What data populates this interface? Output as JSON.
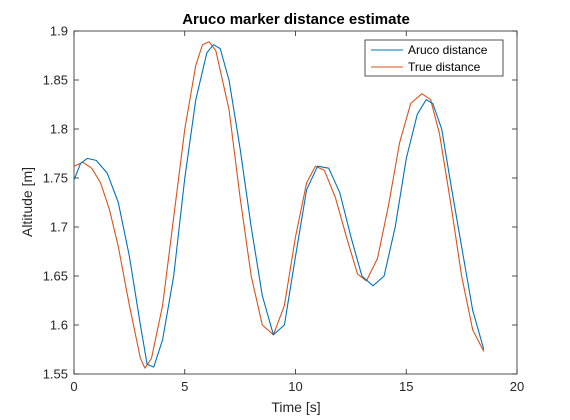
{
  "chart_data": {
    "type": "line",
    "title": "Aruco marker distance estimate",
    "xlabel": "Time [s]",
    "ylabel": "Altitude [m]",
    "xlim": [
      0,
      20
    ],
    "ylim": [
      1.55,
      1.9
    ],
    "xticks": [
      "0",
      "5",
      "10",
      "15",
      "20"
    ],
    "yticks": [
      "1.55",
      "1.6",
      "1.65",
      "1.7",
      "1.75",
      "1.8",
      "1.85",
      "1.9"
    ],
    "grid": false,
    "legend_position": "top-right",
    "series": [
      {
        "name": "Aruco distance",
        "color": "#0072bd",
        "x": [
          0,
          0.3,
          0.6,
          1.0,
          1.5,
          2.0,
          2.5,
          3.0,
          3.3,
          3.6,
          4.0,
          4.5,
          5.0,
          5.5,
          6.0,
          6.3,
          6.6,
          7.0,
          7.5,
          8.0,
          8.5,
          9.0,
          9.5,
          10.0,
          10.5,
          11.0,
          11.5,
          12.0,
          12.5,
          13.0,
          13.5,
          14.0,
          14.5,
          15.0,
          15.5,
          15.9,
          16.2,
          16.6,
          17.0,
          17.5,
          18.0,
          18.5
        ],
        "values": [
          1.748,
          1.765,
          1.77,
          1.768,
          1.755,
          1.725,
          1.67,
          1.6,
          1.56,
          1.557,
          1.585,
          1.65,
          1.75,
          1.83,
          1.878,
          1.886,
          1.882,
          1.85,
          1.78,
          1.7,
          1.63,
          1.59,
          1.6,
          1.67,
          1.738,
          1.762,
          1.76,
          1.735,
          1.69,
          1.65,
          1.64,
          1.65,
          1.7,
          1.77,
          1.815,
          1.83,
          1.826,
          1.8,
          1.745,
          1.68,
          1.615,
          1.575
        ]
      },
      {
        "name": "True distance",
        "color": "#d95319",
        "x": [
          0,
          0.4,
          0.8,
          1.2,
          1.6,
          2.0,
          2.5,
          3.0,
          3.2,
          3.5,
          4.0,
          4.5,
          5.0,
          5.5,
          5.8,
          6.1,
          6.4,
          7.0,
          7.5,
          8.0,
          8.5,
          9.0,
          9.5,
          10.0,
          10.5,
          10.9,
          11.3,
          11.8,
          12.3,
          12.8,
          13.2,
          13.7,
          14.2,
          14.7,
          15.2,
          15.7,
          16.1,
          16.5,
          17.0,
          17.5,
          18.0,
          18.5
        ],
        "values": [
          1.762,
          1.766,
          1.76,
          1.745,
          1.718,
          1.68,
          1.62,
          1.566,
          1.556,
          1.566,
          1.62,
          1.71,
          1.8,
          1.865,
          1.886,
          1.889,
          1.88,
          1.82,
          1.73,
          1.65,
          1.6,
          1.59,
          1.62,
          1.69,
          1.745,
          1.762,
          1.758,
          1.73,
          1.69,
          1.652,
          1.645,
          1.668,
          1.722,
          1.786,
          1.826,
          1.836,
          1.83,
          1.795,
          1.725,
          1.65,
          1.595,
          1.573
        ]
      }
    ]
  }
}
